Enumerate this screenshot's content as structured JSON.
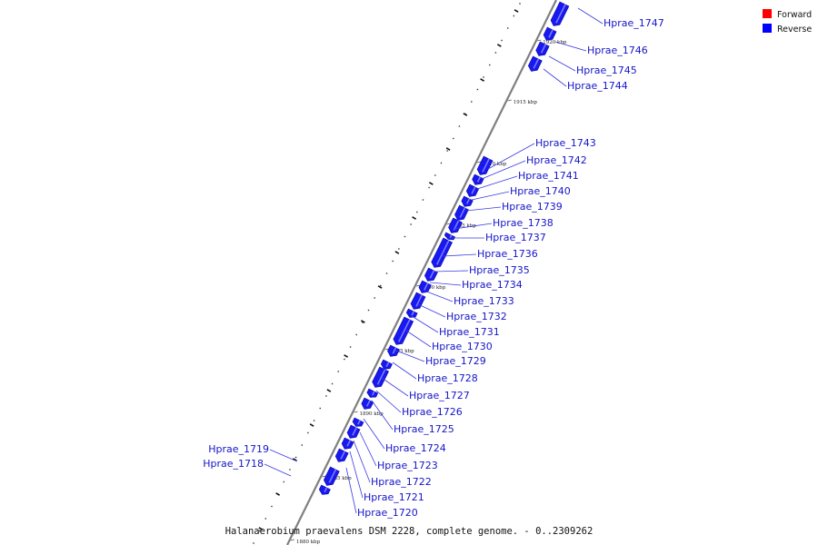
{
  "caption": "Halanaerobium praevalens DSM 2228, complete genome. - 0..2309262",
  "legend": [
    {
      "label": "Forward",
      "color": "#ff0000"
    },
    {
      "label": "Reverse",
      "color": "#0000ff"
    }
  ],
  "colors": {
    "reverse_gene": "#1818f0",
    "label_line": "#3a3ae6",
    "backbone": "#7f7f7f"
  },
  "kbp_ticks": [
    "1880 kbp",
    "1885 kbp",
    "1890 kbp",
    "1895 kbp",
    "1900 kbp",
    "1905 kbp",
    "1910 kbp",
    "1915 kbp",
    "1920 kbp"
  ],
  "genes": [
    "Hprae_1747",
    "Hprae_1746",
    "Hprae_1745",
    "Hprae_1744",
    "Hprae_1743",
    "Hprae_1742",
    "Hprae_1741",
    "Hprae_1740",
    "Hprae_1739",
    "Hprae_1738",
    "Hprae_1737",
    "Hprae_1736",
    "Hprae_1735",
    "Hprae_1734",
    "Hprae_1733",
    "Hprae_1732",
    "Hprae_1731",
    "Hprae_1730",
    "Hprae_1729",
    "Hprae_1728",
    "Hprae_1727",
    "Hprae_1726",
    "Hprae_1725",
    "Hprae_1724",
    "Hprae_1723",
    "Hprae_1722",
    "Hprae_1721",
    "Hprae_1720",
    "Hprae_1719",
    "Hprae_1718"
  ]
}
